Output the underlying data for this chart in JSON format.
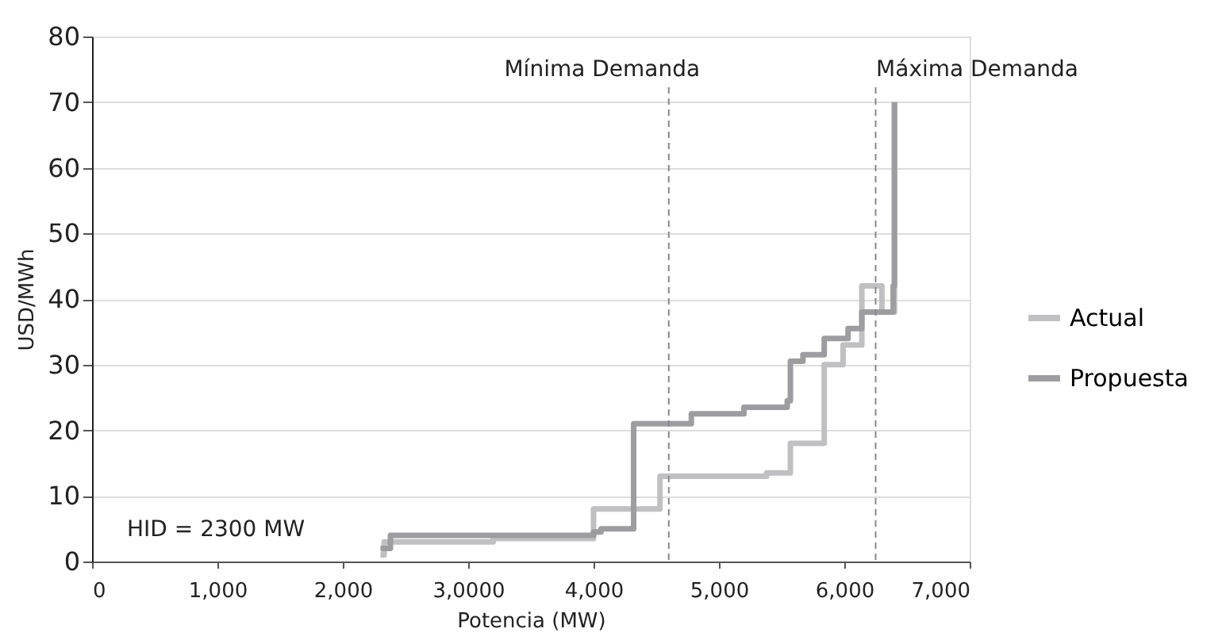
{
  "chart_data": {
    "type": "step",
    "xlabel": "Potencia (MW)",
    "ylabel": "USD/MWh",
    "xlim": [
      0,
      7000
    ],
    "ylim": [
      0,
      80
    ],
    "xticks": [
      0,
      {
        "value": 1000,
        "label": "1,000"
      },
      {
        "value": 2000,
        "label": "2,000"
      },
      {
        "value": 3000,
        "label": "3,0000"
      },
      {
        "value": 4000,
        "label": "4,000"
      },
      {
        "value": 5000,
        "label": "5,000"
      },
      {
        "value": 6000,
        "label": "6,000"
      },
      {
        "value": 7000,
        "label": "7,000"
      }
    ],
    "yticks": [
      0,
      10,
      20,
      30,
      40,
      50,
      60,
      70,
      80
    ],
    "grid": "y",
    "legend": "right",
    "line_style": "solid",
    "marker": "none",
    "series": [
      {
        "name": "Actual",
        "color": "#c0c0c2",
        "x": [
          2300,
          2330,
          2600,
          3200,
          4000,
          4530,
          5380,
          5570,
          5840,
          5990,
          6140,
          6300,
          6400,
          6400
        ],
        "values": [
          1,
          3,
          3,
          3.5,
          8,
          13,
          13.5,
          18,
          30,
          33,
          42,
          38,
          42,
          70
        ]
      },
      {
        "name": "Propuesta",
        "color": "#9d9da1",
        "x": [
          2300,
          2380,
          4000,
          4060,
          4320,
          4780,
          5200,
          5545,
          5570,
          5670,
          5840,
          6030,
          6140,
          6390,
          6400,
          6400
        ],
        "values": [
          2,
          4,
          4.5,
          5,
          21,
          22.5,
          23.5,
          24.5,
          30.5,
          31.5,
          34,
          35.5,
          38,
          42,
          42,
          70
        ]
      }
    ],
    "ref_lines": [
      {
        "axis": "x",
        "value": 4600,
        "label": "Mínima Demanda",
        "color": "#888888",
        "line_style": "dashed"
      },
      {
        "axis": "x",
        "value": 6250,
        "label": "Máxima Demanda",
        "color": "#888888",
        "line_style": "dashed"
      }
    ],
    "annotations": [
      "HID = 2300 MW"
    ]
  }
}
